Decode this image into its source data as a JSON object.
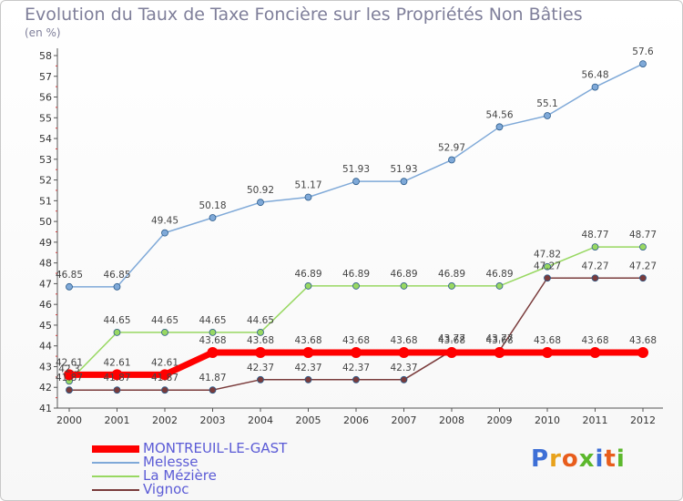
{
  "header": {
    "title": "Evolution du Taux de Taxe Foncière sur les Propriétés Non Bâties",
    "unit": "(en %)"
  },
  "logo": {
    "text": "Proxiti",
    "letters": [
      "P",
      "r",
      "o",
      "x",
      "i",
      "t",
      "i"
    ],
    "colors": [
      "#3d6fd6",
      "#e8a21c",
      "#e85d1c",
      "#5cb82c",
      "#3d6fd6",
      "#e85d1c",
      "#5cb82c"
    ]
  },
  "chart_data": {
    "type": "line",
    "title": "Evolution du Taux de Taxe Foncière sur les Propriétés Non Bâties",
    "ylabel": "(en %)",
    "xlabel": "",
    "x": [
      "2000",
      "2001",
      "2002",
      "2003",
      "2004",
      "2005",
      "2006",
      "2007",
      "2008",
      "2009",
      "2010",
      "2011",
      "2012"
    ],
    "ylim": [
      41,
      58
    ],
    "yticks": [
      41,
      42,
      43,
      44,
      45,
      46,
      47,
      48,
      49,
      50,
      51,
      52,
      53,
      54,
      55,
      56,
      57,
      58
    ],
    "grid": false,
    "legend": "bottom-left",
    "series": [
      {
        "name": "MONTREUIL-LE-GAST",
        "color": "#ff0000",
        "values": [
          42.61,
          42.61,
          42.61,
          43.68,
          43.68,
          43.68,
          43.68,
          43.68,
          43.68,
          43.68,
          43.68,
          43.68,
          43.68
        ],
        "labels": [
          "42.61",
          "42.61",
          "42.61",
          "43.68",
          "43.68",
          "43.68",
          "43.68",
          "43.68",
          "43.68",
          "43.68",
          "43.68",
          "43.68",
          "43.68"
        ]
      },
      {
        "name": "Melesse",
        "color": "#7fa9d8",
        "values": [
          46.85,
          46.85,
          49.45,
          50.18,
          50.92,
          51.17,
          51.93,
          51.93,
          52.97,
          54.56,
          55.1,
          56.48,
          57.6
        ],
        "labels": [
          "46.85",
          "46.85",
          "49.45",
          "50.18",
          "50.92",
          "51.17",
          "51.93",
          "51.93",
          "52.97",
          "54.56",
          "55.1",
          "56.48",
          "57.6"
        ]
      },
      {
        "name": "La Mézière",
        "color": "#98d862",
        "values": [
          42.3,
          44.65,
          44.65,
          44.65,
          44.65,
          46.89,
          46.89,
          46.89,
          46.89,
          46.89,
          47.82,
          48.77,
          48.77
        ],
        "labels": [
          "42.3",
          "44.65",
          "44.65",
          "44.65",
          "44.65",
          "46.89",
          "46.89",
          "46.89",
          "46.89",
          "46.89",
          "47.82",
          "48.77",
          "48.77"
        ]
      },
      {
        "name": "Vignoc",
        "color": "#7a3b3b",
        "values": [
          41.87,
          41.87,
          41.87,
          41.87,
          42.37,
          42.37,
          42.37,
          42.37,
          43.77,
          43.77,
          47.27,
          47.27,
          47.27
        ],
        "labels": [
          "41.87",
          "41.87",
          "41.87",
          "41.87",
          "42.37",
          "42.37",
          "42.37",
          "42.37",
          "43.77",
          "43.77",
          "47.27",
          "47.27",
          "47.27"
        ]
      }
    ]
  }
}
